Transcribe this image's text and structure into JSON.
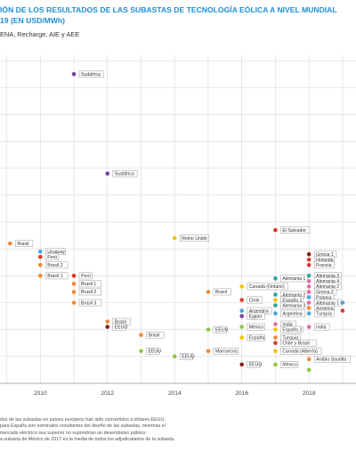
{
  "title_line1": "IÓN DE LOS RESULTADOS DE LAS SUBASTAS DE TECNOLOGÍA EÓLICA A NIVEL MUNDIAL",
  "title_line2": "19 (EN USD/MWh)",
  "source": "ENA, Recharge, AIE y AEE",
  "notes": [
    "dos de las subastas en países europeos han sido convertidos a dólares EEUU.",
    "para España son nominales resultantes del diseño de las subastas, mientras el",
    "mercado eléctrico sea superior no supondrían un desembolso público.",
    "a subasta de México de 2017 es la media de todos los adjudicatarios de la subasta."
  ],
  "chart_data": {
    "type": "scatter",
    "xlabel": "",
    "ylabel": "",
    "xlim": [
      2008.8,
      2019.4
    ],
    "ylim": [
      0,
      122
    ],
    "grid": true,
    "x_ticks": [
      "2010",
      "2012",
      "2014",
      "2016",
      "2018"
    ],
    "colors": {
      "purple": "#7b3fa0",
      "orange": "#ef8a33",
      "red": "#d93a2b",
      "blue": "#4aa3df",
      "green": "#8dc63f",
      "yellow": "#f2c500",
      "pink": "#e96aa8",
      "darkred": "#8b1a1a",
      "teal": "#2aa6a6",
      "grid": "#d9d9d9",
      "label_border": "#999999"
    },
    "points": [
      {
        "x": 2009.1,
        "y": 52,
        "color": "orange",
        "label": "Brasil",
        "side": "right"
      },
      {
        "x": 2010.0,
        "y": 49,
        "color": "blue",
        "label": "Uruguay",
        "side": "right"
      },
      {
        "x": 2010.0,
        "y": 47,
        "color": "red",
        "label": "Perú",
        "side": "right"
      },
      {
        "x": 2010.0,
        "y": 44,
        "color": "orange",
        "label": "Brasil 2",
        "side": "right"
      },
      {
        "x": 2010.0,
        "y": 40,
        "color": "orange",
        "label": "Brasil 1",
        "side": "right"
      },
      {
        "x": 2011.0,
        "y": 115,
        "color": "purple",
        "label": "Sudáfrica",
        "side": "right"
      },
      {
        "x": 2011.0,
        "y": 40,
        "color": "red",
        "label": "Perú",
        "side": "right"
      },
      {
        "x": 2011.0,
        "y": 37,
        "color": "orange",
        "label": "Brasil 1",
        "side": "right"
      },
      {
        "x": 2011.0,
        "y": 34,
        "color": "orange",
        "label": "Brasil 2",
        "side": "right"
      },
      {
        "x": 2011.0,
        "y": 30,
        "color": "orange",
        "label": "Brasil 3",
        "side": "right"
      },
      {
        "x": 2012.0,
        "y": 78,
        "color": "purple",
        "label": "Sudáfrica",
        "side": "right"
      },
      {
        "x": 2012.0,
        "y": 23,
        "color": "orange",
        "label": "Brasil",
        "side": "right"
      },
      {
        "x": 2012.0,
        "y": 21,
        "color": "darkred",
        "label": "EEUU",
        "side": "right"
      },
      {
        "x": 2013.0,
        "y": 18,
        "color": "orange",
        "label": "Brasil",
        "side": "right"
      },
      {
        "x": 2013.0,
        "y": 12,
        "color": "green",
        "label": "EEUU",
        "side": "right"
      },
      {
        "x": 2014.0,
        "y": 54,
        "color": "yellow",
        "label": "Reino Unido",
        "side": "right"
      },
      {
        "x": 2014.0,
        "y": 10,
        "color": "green",
        "label": "EEUU",
        "side": "right"
      },
      {
        "x": 2015.0,
        "y": 34,
        "color": "orange",
        "label": "Brasil",
        "side": "right"
      },
      {
        "x": 2015.0,
        "y": 20,
        "color": "green",
        "label": "EEUU",
        "side": "right"
      },
      {
        "x": 2015.0,
        "y": 12,
        "color": "orange",
        "label": "Marruecos",
        "side": "right"
      },
      {
        "x": 2016.0,
        "y": 36,
        "color": "yellow",
        "label": "Canadá (Ontario)",
        "side": "right"
      },
      {
        "x": 2016.0,
        "y": 31,
        "color": "red",
        "label": "Chile",
        "side": "right"
      },
      {
        "x": 2016.0,
        "y": 27,
        "color": "blue",
        "label": "Argentina",
        "side": "right"
      },
      {
        "x": 2016.0,
        "y": 25,
        "color": "purple",
        "label": "Egipto",
        "side": "right"
      },
      {
        "x": 2016.0,
        "y": 21,
        "color": "green",
        "label": "México",
        "side": "right"
      },
      {
        "x": 2016.0,
        "y": 17,
        "color": "yellow",
        "label": "España",
        "side": "right"
      },
      {
        "x": 2016.0,
        "y": 7,
        "color": "darkred",
        "label": "EEUU",
        "side": "right"
      },
      {
        "x": 2017.0,
        "y": 57,
        "color": "red",
        "label": "El Salvador",
        "side": "right"
      },
      {
        "x": 2017.0,
        "y": 39,
        "color": "teal",
        "label": "Alemania 1",
        "side": "right"
      },
      {
        "x": 2017.0,
        "y": 33,
        "color": "teal",
        "label": "Alemania 2",
        "side": "right"
      },
      {
        "x": 2017.0,
        "y": 31,
        "color": "yellow",
        "label": "España 1",
        "side": "right"
      },
      {
        "x": 2017.0,
        "y": 29,
        "color": "teal",
        "label": "Alemania 3",
        "side": "right"
      },
      {
        "x": 2017.0,
        "y": 26,
        "color": "blue",
        "label": "Argentina",
        "side": "right"
      },
      {
        "x": 2017.0,
        "y": 22,
        "color": "pink",
        "label": "India",
        "side": "right"
      },
      {
        "x": 2017.0,
        "y": 20,
        "color": "yellow",
        "label": "España 2",
        "side": "right"
      },
      {
        "x": 2017.0,
        "y": 17,
        "color": "orange",
        "label": "Turquía",
        "side": "right"
      },
      {
        "x": 2017.0,
        "y": 15,
        "color": "red",
        "label": "Chile y Brasil",
        "side": "right"
      },
      {
        "x": 2017.0,
        "y": 12,
        "color": "yellow",
        "label": "Canadá (Alberta)",
        "side": "right"
      },
      {
        "x": 2017.0,
        "y": 7,
        "color": "green",
        "label": "México",
        "side": "right"
      },
      {
        "x": 2018.0,
        "y": 48,
        "color": "darkred",
        "label": "Grecia 1",
        "side": "right"
      },
      {
        "x": 2018.0,
        "y": 46,
        "color": "red",
        "label": "Holanda",
        "side": "right"
      },
      {
        "x": 2018.0,
        "y": 44,
        "color": "red",
        "label": "Francia",
        "side": "right"
      },
      {
        "x": 2018.0,
        "y": 40,
        "color": "teal",
        "label": "Alemania 3",
        "side": "right"
      },
      {
        "x": 2018.0,
        "y": 38,
        "color": "pink",
        "label": "Alemania 4",
        "side": "right"
      },
      {
        "x": 2018.0,
        "y": 36,
        "color": "pink",
        "label": "Alemania 2",
        "side": "right"
      },
      {
        "x": 2018.0,
        "y": 34,
        "color": "pink",
        "label": "Grecia 2",
        "side": "right"
      },
      {
        "x": 2018.0,
        "y": 32,
        "color": "blue",
        "label": "Polonia",
        "side": "right"
      },
      {
        "x": 2018.0,
        "y": 30,
        "color": "pink",
        "label": "Alemania 1",
        "side": "right"
      },
      {
        "x": 2018.0,
        "y": 28,
        "color": "orange",
        "label": "Armenia",
        "side": "right"
      },
      {
        "x": 2018.0,
        "y": 26,
        "color": "blue",
        "label": "Turquía",
        "side": "right"
      },
      {
        "x": 2018.0,
        "y": 21,
        "color": "pink",
        "label": "India",
        "side": "right"
      },
      {
        "x": 2018.0,
        "y": 9,
        "color": "orange",
        "label": "Arabia Saudita",
        "side": "right"
      },
      {
        "x": 2018.0,
        "y": 5,
        "color": "green",
        "label": "",
        "side": "right"
      },
      {
        "x": 2019.0,
        "y": 30,
        "color": "blue",
        "label": "",
        "side": "right"
      },
      {
        "x": 2019.0,
        "y": 27,
        "color": "red",
        "label": "",
        "side": "right"
      }
    ]
  }
}
